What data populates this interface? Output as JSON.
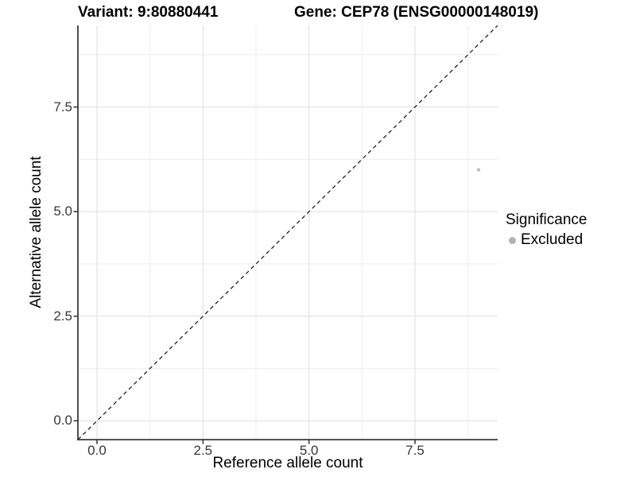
{
  "header": {
    "variant_title": "Variant: 9:80880441",
    "gene_title": "Gene: CEP78 (ENSG00000148019)"
  },
  "chart_data": {
    "type": "scatter",
    "xlabel": "Reference allele count",
    "ylabel": "Alternative allele count",
    "xlim": [
      -0.45,
      9.45
    ],
    "ylim": [
      -0.45,
      9.45
    ],
    "xticks": [
      0,
      2.5,
      5,
      7.5
    ],
    "xtick_labels": [
      "0.0",
      "2.5",
      "5.0",
      "7.5"
    ],
    "yticks": [
      0,
      2.5,
      5,
      7.5
    ],
    "ytick_labels": [
      "0.0",
      "2.5",
      "5.0",
      "7.5"
    ],
    "minor_xticks": [
      1.25,
      3.75,
      6.25,
      8.75
    ],
    "minor_yticks": [
      1.25,
      3.75,
      6.25,
      8.75
    ],
    "grid": true,
    "series": [
      {
        "name": "Excluded",
        "points": [
          {
            "x": 9,
            "y": 6
          }
        ]
      }
    ],
    "reference_line": {
      "style": "dashed",
      "from": [
        -0.45,
        -0.45
      ],
      "to": [
        9.45,
        9.45
      ]
    },
    "legend": {
      "title": "Significance",
      "position": "right",
      "items": [
        {
          "label": "Excluded",
          "color": "#b3b3b3"
        }
      ]
    }
  },
  "colors": {
    "background": "#ffffff",
    "title_text": "#000000",
    "point": "#bdbdbd",
    "legend_key": "#b3b3b3",
    "axis_line": "#3a3a3a",
    "tick_label": "#383838",
    "grid_major": "#e3e3e3",
    "grid_minor": "#efefef",
    "reference_line": "#111111"
  }
}
